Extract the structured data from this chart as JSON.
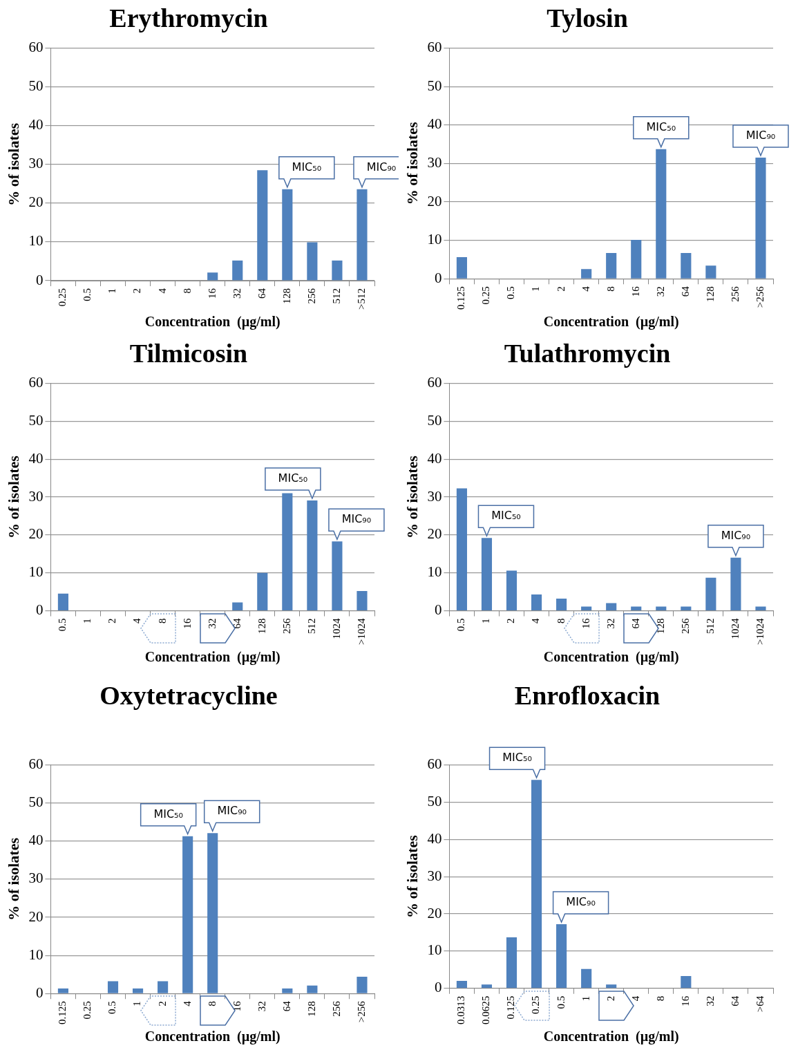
{
  "chart_data": [
    {
      "type": "bar",
      "title": "Erythromycin",
      "xlabel": "Concentration  (µg/ml)",
      "ylabel": "% of isolates",
      "categories": [
        "0.25",
        "0.5",
        "1",
        "2",
        "4",
        "8",
        "16",
        "32",
        "64",
        "128",
        "256",
        "512",
        ">512"
      ],
      "values": [
        0,
        0,
        0,
        0,
        0,
        0,
        2.1,
        5.2,
        28.5,
        23.6,
        9.9,
        5.2,
        23.6
      ],
      "color": "#4f81bd",
      "ylim": [
        0,
        60
      ],
      "yticks": [
        0,
        10,
        20,
        30,
        40,
        50,
        60
      ],
      "grid": "y",
      "legend": false,
      "annotations": [
        {
          "text": "MIC₅₀",
          "x": "128",
          "y": 23.6
        },
        {
          "text": "MIC₉₀",
          "x": ">512",
          "y": 23.6
        }
      ]
    },
    {
      "type": "bar",
      "title": "Tylosin",
      "xlabel": "Concentration  (µg/ml)",
      "ylabel": "% of isolates",
      "categories": [
        "0.125",
        "0.25",
        "0.5",
        "1",
        "2",
        "4",
        "8",
        "16",
        "32",
        "64",
        "128",
        "256",
        ">256"
      ],
      "values": [
        5.6,
        0,
        0,
        0,
        0,
        2.5,
        6.7,
        10.1,
        33.7,
        6.7,
        3.4,
        0,
        31.5
      ],
      "color": "#4f81bd",
      "ylim": [
        0,
        60
      ],
      "yticks": [
        0,
        10,
        20,
        30,
        40,
        50,
        60
      ],
      "grid": "y",
      "legend": false,
      "annotations": [
        {
          "text": "MIC₅₀",
          "x": "32",
          "y": 33.7
        },
        {
          "text": "MIC₉₀",
          "x": ">256",
          "y": 31.5
        }
      ]
    },
    {
      "type": "bar",
      "title": "Tilmicosin",
      "xlabel": "Concentration  (µg/ml)",
      "ylabel": "% of isolates",
      "categories": [
        "0.5",
        "1",
        "2",
        "4",
        "8",
        "16",
        "32",
        "64",
        "128",
        "256",
        "512",
        "1024",
        ">1024"
      ],
      "values": [
        4.5,
        0,
        0,
        0,
        0,
        0,
        0,
        2.2,
        10,
        31,
        29.1,
        18.3,
        5.2
      ],
      "color": "#4f81bd",
      "ylim": [
        0,
        60
      ],
      "yticks": [
        0,
        10,
        20,
        30,
        40,
        50,
        60
      ],
      "grid": "y",
      "legend": false,
      "annotations": [
        {
          "text": "MIC₅₀",
          "x": "512",
          "y": 29.1
        },
        {
          "text": "MIC₉₀",
          "x": "1024",
          "y": 18.3
        }
      ]
    },
    {
      "type": "bar",
      "title": "Tulathromycin",
      "xlabel": "Concentration  (µg/ml)",
      "ylabel": "% of isolates",
      "categories": [
        "0.5",
        "1",
        "2",
        "4",
        "8",
        "16",
        "32",
        "64",
        "128",
        "256",
        "512",
        "1024",
        ">1024"
      ],
      "values": [
        32.3,
        19.2,
        10.6,
        4.3,
        3.2,
        1.1,
        2,
        1.1,
        1.1,
        1.1,
        8.7,
        14,
        1.1
      ],
      "color": "#4f81bd",
      "ylim": [
        0,
        60
      ],
      "yticks": [
        0,
        10,
        20,
        30,
        40,
        50,
        60
      ],
      "grid": "y",
      "legend": false,
      "annotations": [
        {
          "text": "MIC₅₀",
          "x": "1",
          "y": 19.2
        },
        {
          "text": "MIC₉₀",
          "x": "1024",
          "y": 14
        }
      ]
    },
    {
      "type": "bar",
      "title": "Oxytetracycline",
      "xlabel": "Concentration  (µg/ml)",
      "ylabel": "% of isolates",
      "categories": [
        "0.125",
        "0.25",
        "0.5",
        "1",
        "2",
        "4",
        "8",
        "16",
        "32",
        "64",
        "128",
        "256",
        ">256"
      ],
      "values": [
        1.3,
        0,
        3.2,
        1.3,
        3.2,
        41.3,
        42.1,
        0,
        0,
        1.3,
        2.1,
        0,
        4.4
      ],
      "color": "#4f81bd",
      "ylim": [
        0,
        60
      ],
      "yticks": [
        0,
        10,
        20,
        30,
        40,
        50,
        60
      ],
      "grid": "y",
      "legend": false,
      "annotations": [
        {
          "text": "MIC₅₀",
          "x": "4",
          "y": 41.3
        },
        {
          "text": "MIC₉₀",
          "x": "8",
          "y": 42.1
        }
      ]
    },
    {
      "type": "bar",
      "title": "Enrofloxacin",
      "xlabel": "Concentration  (µg/ml)",
      "ylabel": "% of isolates",
      "categories": [
        "0.0313",
        "0.0625",
        "0.125",
        "0.25",
        "0.5",
        "1",
        "2",
        "4",
        "8",
        "16",
        "32",
        "64",
        ">64"
      ],
      "values": [
        2,
        1,
        13.7,
        56,
        17.2,
        5.2,
        1,
        0,
        0,
        3.3,
        0,
        0,
        0
      ],
      "color": "#4f81bd",
      "ylim": [
        0,
        60
      ],
      "yticks": [
        0,
        10,
        20,
        30,
        40,
        50,
        60
      ],
      "grid": "y",
      "legend": false,
      "annotations": [
        {
          "text": "MIC₅₀",
          "x": "0.25",
          "y": 56
        },
        {
          "text": "MIC₉₀",
          "x": "0.5",
          "y": 17.2
        }
      ]
    }
  ]
}
